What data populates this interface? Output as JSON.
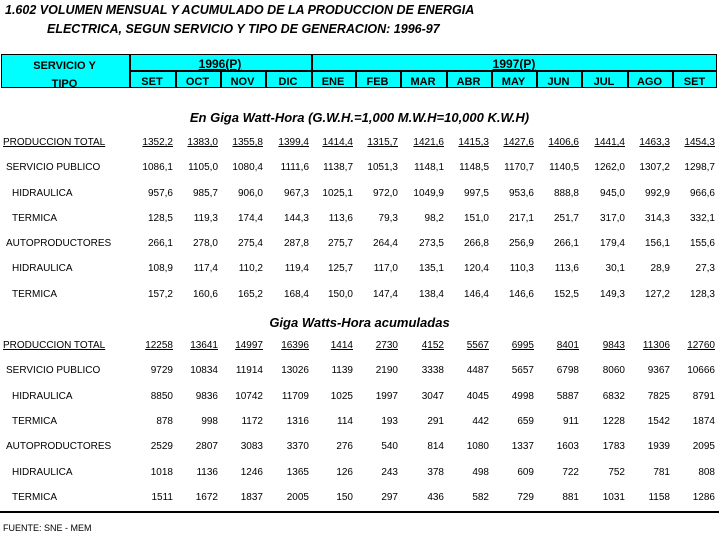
{
  "title": {
    "line1": "1.602  VOLUMEN MENSUAL Y ACUMULADO DE LA PRODUCCION DE ENERGIA",
    "line2": "ELECTRICA, SEGUN SERVICIO Y TIPO DE GENERACION: 1996-97"
  },
  "header": {
    "col_label_1": "SERVICIO Y",
    "col_label_2": "TIPO",
    "year1": "1996(P)",
    "year2": "1997(P)",
    "months": [
      "SET",
      "OCT",
      "NOV",
      "DIC",
      "ENE",
      "FEB",
      "MAR",
      "ABR",
      "MAY",
      "JUN",
      "JUL",
      "AGO",
      "SET"
    ]
  },
  "header_color": "#00ffff",
  "sections": [
    {
      "title": "En Giga Watt-Hora (G.W.H.=1,000 M.W.H=10,000 K.W.H)",
      "rows": [
        {
          "label": "PRODUCCION TOTAL",
          "values": [
            "1352,2",
            "1383,0",
            "1355,8",
            "1399,4",
            "1414,4",
            "1315,7",
            "1421,6",
            "1415,3",
            "1427,6",
            "1406,6",
            "1441,4",
            "1463,3",
            "1454,3"
          ]
        },
        {
          "label": "SERVICIO PUBLICO",
          "values": [
            "1086,1",
            "1105,0",
            "1080,4",
            "1111,6",
            "1138,7",
            "1051,3",
            "1148,1",
            "1148,5",
            "1170,7",
            "1140,5",
            "1262,0",
            "1307,2",
            "1298,7"
          ]
        },
        {
          "label": "HIDRAULICA",
          "values": [
            "957,6",
            "985,7",
            "906,0",
            "967,3",
            "1025,1",
            "972,0",
            "1049,9",
            "997,5",
            "953,6",
            "888,8",
            "945,0",
            "992,9",
            "966,6"
          ]
        },
        {
          "label": "TERMICA",
          "values": [
            "128,5",
            "119,3",
            "174,4",
            "144,3",
            "113,6",
            "79,3",
            "98,2",
            "151,0",
            "217,1",
            "251,7",
            "317,0",
            "314,3",
            "332,1"
          ]
        },
        {
          "label": "AUTOPRODUCTORES",
          "values": [
            "266,1",
            "278,0",
            "275,4",
            "287,8",
            "275,7",
            "264,4",
            "273,5",
            "266,8",
            "256,9",
            "266,1",
            "179,4",
            "156,1",
            "155,6"
          ]
        },
        {
          "label": "HIDRAULICA",
          "values": [
            "108,9",
            "117,4",
            "110,2",
            "119,4",
            "125,7",
            "117,0",
            "135,1",
            "120,4",
            "110,3",
            "113,6",
            "30,1",
            "28,9",
            "27,3"
          ]
        },
        {
          "label": "TERMICA",
          "values": [
            "157,2",
            "160,6",
            "165,2",
            "168,4",
            "150,0",
            "147,4",
            "138,4",
            "146,4",
            "146,6",
            "152,5",
            "149,3",
            "127,2",
            "128,3"
          ]
        }
      ]
    },
    {
      "title": "Giga Watts-Hora acumuladas",
      "rows": [
        {
          "label": "PRODUCCION TOTAL",
          "values": [
            "12258",
            "13641",
            "14997",
            "16396",
            "1414",
            "2730",
            "4152",
            "5567",
            "6995",
            "8401",
            "9843",
            "11306",
            "12760"
          ]
        },
        {
          "label": "SERVICIO PUBLICO",
          "values": [
            "9729",
            "10834",
            "11914",
            "13026",
            "1139",
            "2190",
            "3338",
            "4487",
            "5657",
            "6798",
            "8060",
            "9367",
            "10666"
          ]
        },
        {
          "label": "HIDRAULICA",
          "values": [
            "8850",
            "9836",
            "10742",
            "11709",
            "1025",
            "1997",
            "3047",
            "4045",
            "4998",
            "5887",
            "6832",
            "7825",
            "8791"
          ]
        },
        {
          "label": "TERMICA",
          "values": [
            "878",
            "998",
            "1172",
            "1316",
            "114",
            "193",
            "291",
            "442",
            "659",
            "911",
            "1228",
            "1542",
            "1874"
          ]
        },
        {
          "label": "AUTOPRODUCTORES",
          "values": [
            "2529",
            "2807",
            "3083",
            "3370",
            "276",
            "540",
            "814",
            "1080",
            "1337",
            "1603",
            "1783",
            "1939",
            "2095"
          ]
        },
        {
          "label": "HIDRAULICA",
          "values": [
            "1018",
            "1136",
            "1246",
            "1365",
            "126",
            "243",
            "378",
            "498",
            "609",
            "722",
            "752",
            "781",
            "808"
          ]
        },
        {
          "label": "TERMICA",
          "values": [
            "1511",
            "1672",
            "1837",
            "2005",
            "150",
            "297",
            "436",
            "582",
            "729",
            "881",
            "1031",
            "1158",
            "1286"
          ]
        }
      ]
    }
  ],
  "source": "FUENTE: SNE - MEM"
}
